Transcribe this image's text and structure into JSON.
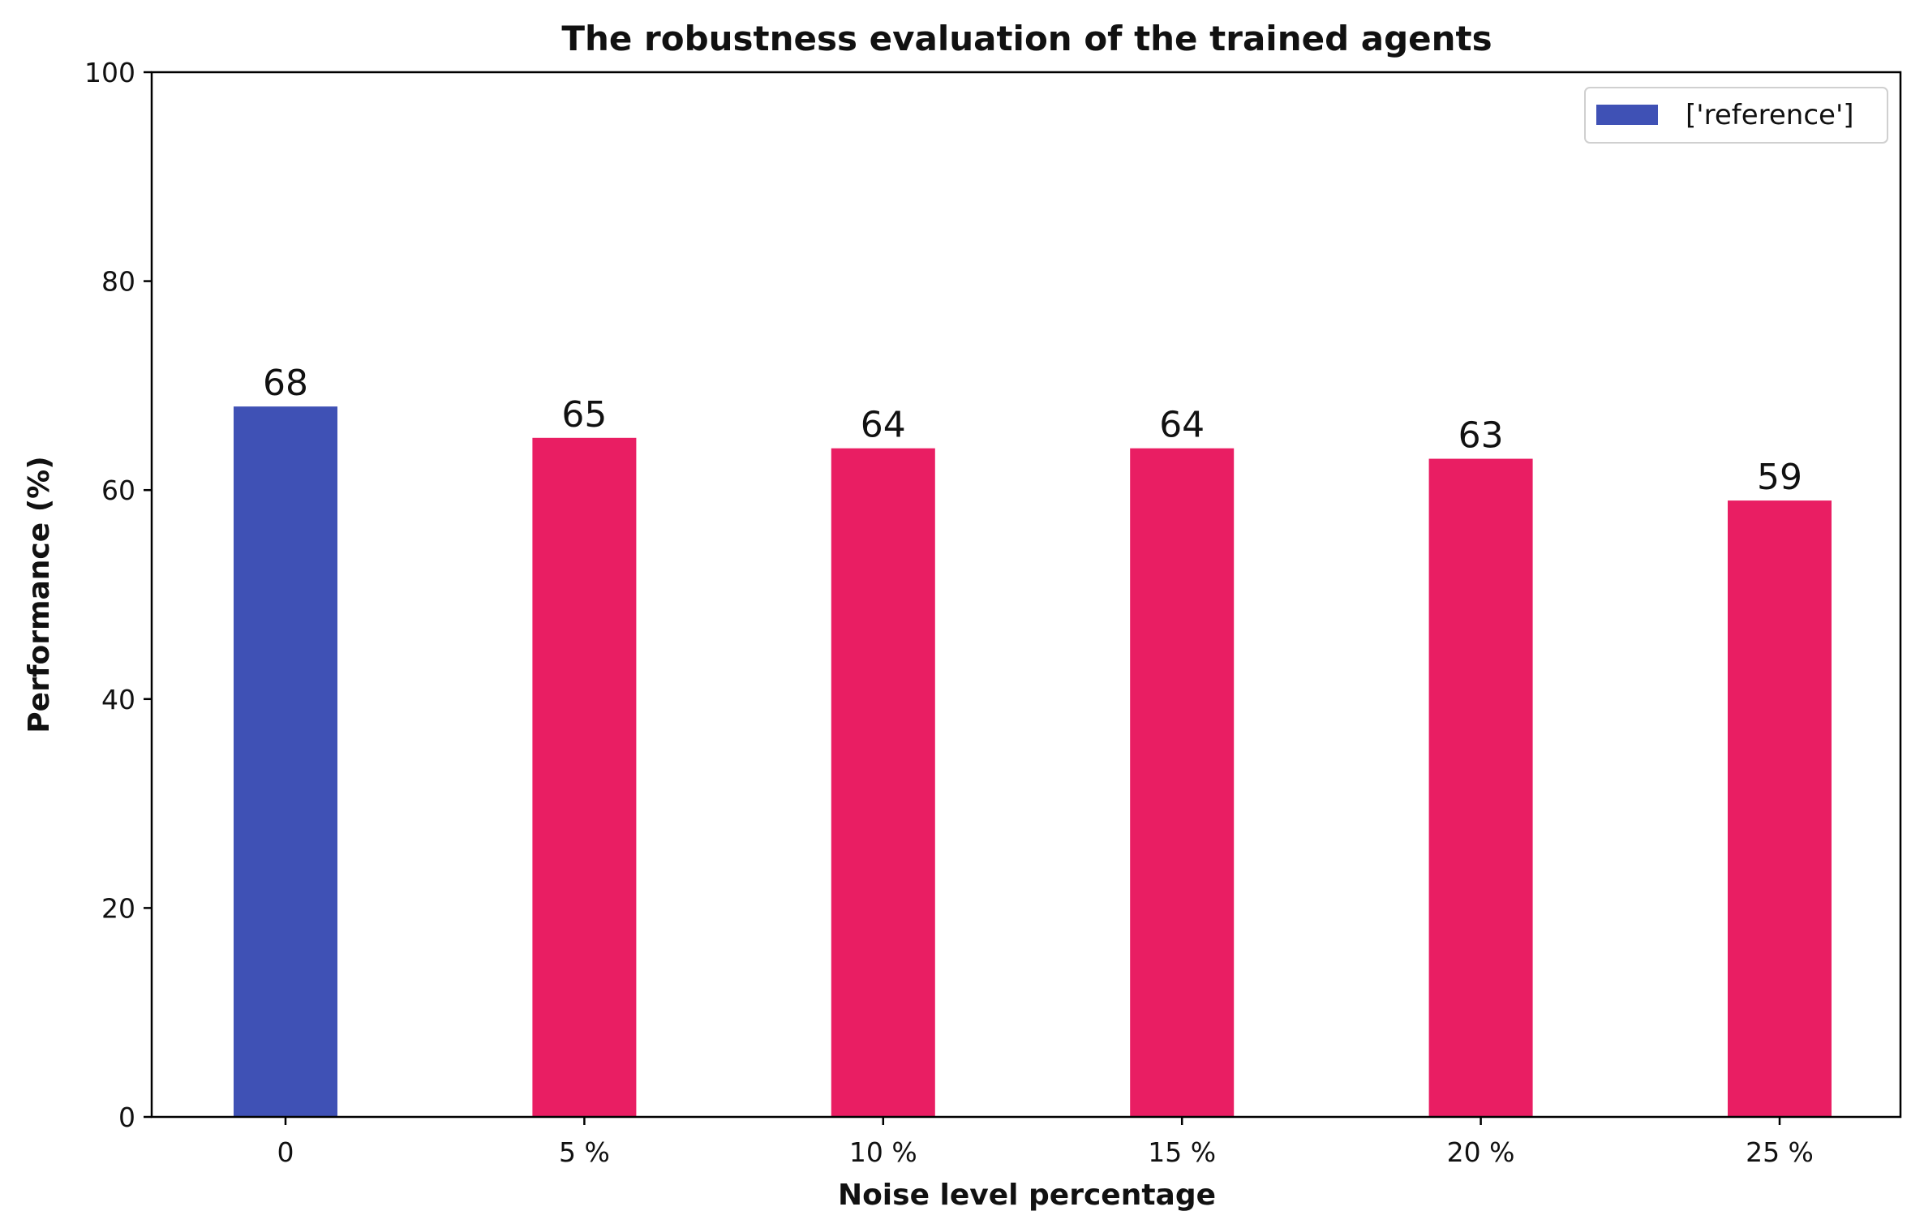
{
  "chart_data": {
    "type": "bar",
    "title": "The robustness evaluation of the trained agents",
    "xlabel": "Noise level percentage",
    "ylabel": "Performance (%)",
    "categories": [
      "0",
      "5 %",
      "10 %",
      "15 %",
      "20 %",
      "25 %"
    ],
    "values": [
      68,
      65,
      64,
      64,
      63,
      59
    ],
    "data_labels": [
      "68",
      "65",
      "64",
      "64",
      "63",
      "59"
    ],
    "bar_colors": [
      "#3f51b5",
      "#e91e63",
      "#e91e63",
      "#e91e63",
      "#e91e63",
      "#e91e63"
    ],
    "ylim": [
      0,
      100
    ],
    "yticks": [
      "0",
      "20",
      "40",
      "60",
      "80",
      "100"
    ],
    "grid": false,
    "legend": {
      "placement": "top-right",
      "entries": [
        {
          "label": "['reference']",
          "color": "#3f51b5"
        }
      ]
    }
  }
}
